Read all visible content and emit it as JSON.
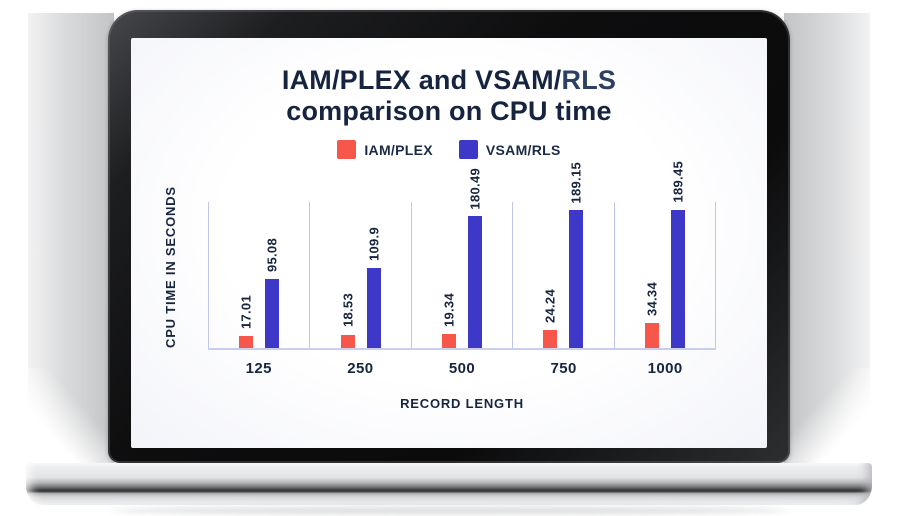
{
  "device": {
    "type": "laptop-mockup"
  },
  "screen": {
    "title": {
      "line1_prefix": "IAM/PLEX and VSAM/",
      "line1_highlight": "RLS",
      "line2": "comparison on CPU time"
    }
  },
  "chart_data": {
    "type": "bar",
    "title": "IAM/PLEX and VSAM/RLS comparison on CPU time",
    "categories": [
      "125",
      "250",
      "500",
      "750",
      "1000"
    ],
    "series": [
      {
        "name": "IAM/PLEX",
        "color": "#f7564b",
        "values": [
          17.01,
          18.53,
          19.34,
          24.24,
          34.34
        ]
      },
      {
        "name": "VSAM/RLS",
        "color": "#3e38c8",
        "values": [
          95.08,
          109.9,
          180.49,
          189.15,
          189.45
        ]
      }
    ],
    "xlabel": "RECORD LENGTH",
    "ylabel": "CPU TIME IN SECONDS",
    "ylim": [
      0,
      203
    ],
    "grid": "vertical-separators-between-groups",
    "legend_position": "top",
    "value_labels": "rotated-vertical-above-bars"
  },
  "colors": {
    "title_navy": "#162440",
    "title_highlight": "#2d4061",
    "label_navy": "#17253f",
    "gridline": "#bfc5ec",
    "baseline": "#c9cdf0",
    "series_red": "#f7564b",
    "series_blue": "#3e38c8"
  }
}
